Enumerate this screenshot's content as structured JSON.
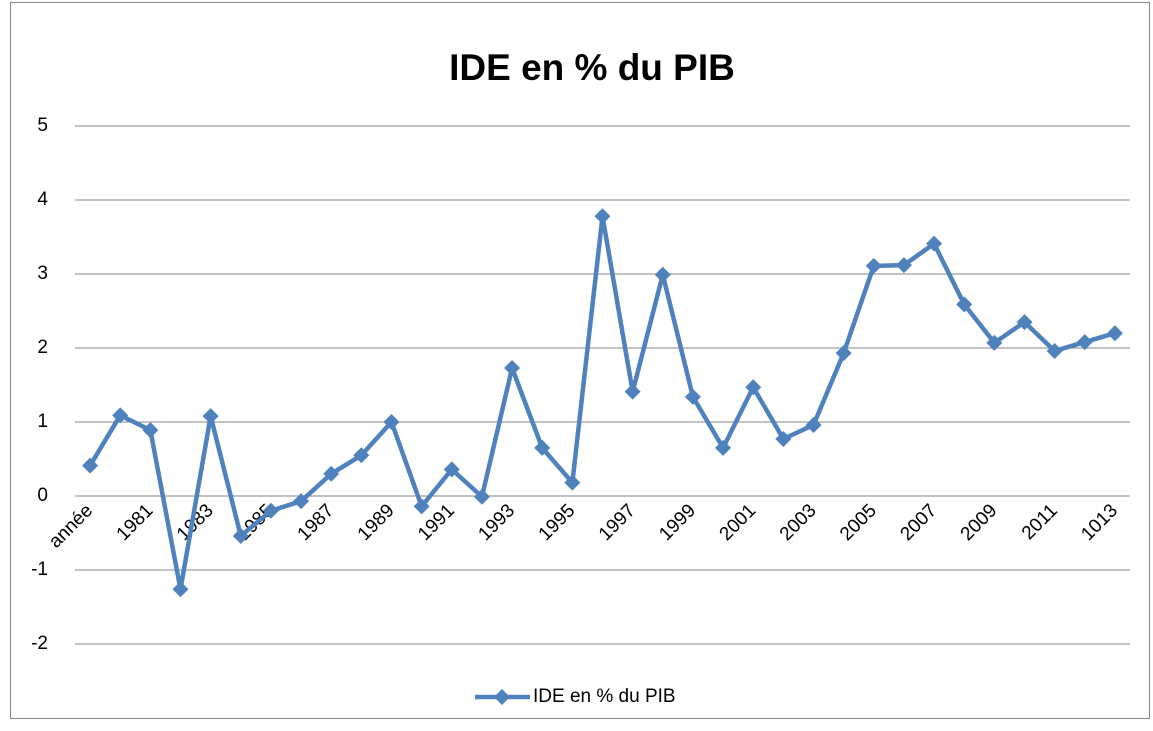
{
  "chart_data": {
    "type": "line",
    "title": "IDE en % du PIB",
    "categories": [
      "année",
      null,
      "1981",
      null,
      "1983",
      null,
      "1985",
      null,
      "1987",
      null,
      "1989",
      null,
      "1991",
      null,
      "1993",
      null,
      "1995",
      null,
      "1997",
      null,
      "1999",
      null,
      "2001",
      null,
      "2003",
      null,
      "2005",
      null,
      "2007",
      null,
      "2009",
      null,
      "2011",
      null,
      "1013"
    ],
    "series": [
      {
        "name": "IDE en % du PIB",
        "color": "#4f81bd",
        "values": [
          0.41,
          1.09,
          0.89,
          -1.26,
          1.08,
          -0.54,
          -0.2,
          -0.07,
          0.3,
          0.55,
          1.0,
          -0.14,
          0.36,
          -0.01,
          1.73,
          0.65,
          0.18,
          3.78,
          1.41,
          2.99,
          1.34,
          0.65,
          1.47,
          0.77,
          0.96,
          1.93,
          3.11,
          3.12,
          3.41,
          2.59,
          2.07,
          2.35,
          1.96,
          2.08,
          2.2
        ]
      }
    ],
    "ylim": [
      -2,
      5
    ],
    "yticks": [
      -2,
      -1,
      0,
      1,
      2,
      3,
      4,
      5
    ],
    "grid": true,
    "legend": "bottom"
  }
}
